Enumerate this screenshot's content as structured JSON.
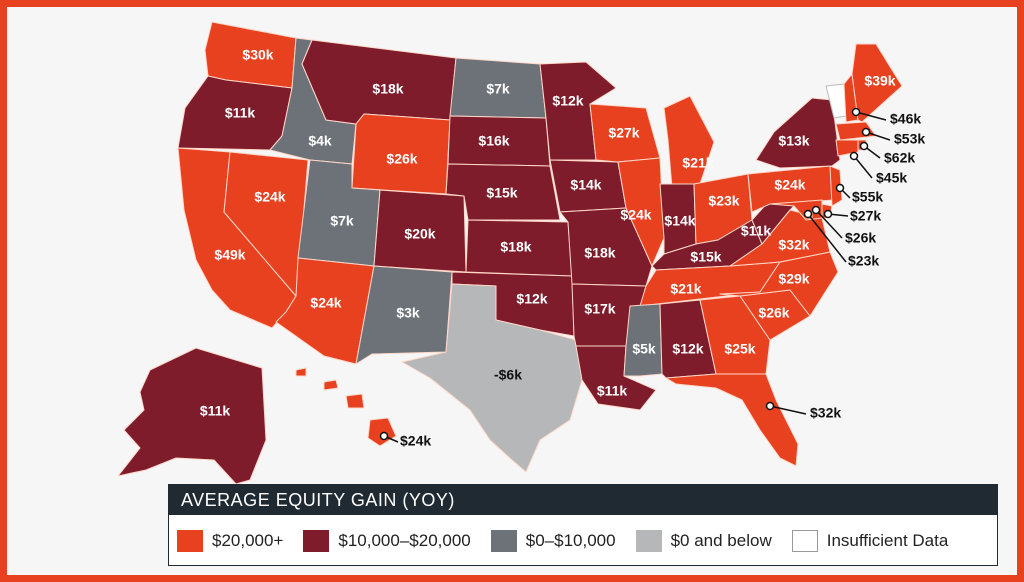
{
  "legend": {
    "title": "AVERAGE EQUITY GAIN (YOY)",
    "items": [
      {
        "label": "$20,000+",
        "color": "#e8411f"
      },
      {
        "label": "$10,000–$20,000",
        "color": "#7e1c2c"
      },
      {
        "label": "$0–$10,000",
        "color": "#6d7279"
      },
      {
        "label": "$0 and below",
        "color": "#b6b7b9"
      },
      {
        "label": "Insufficient Data",
        "color": "#ffffff"
      }
    ]
  },
  "colors": {
    "red": "#e8411f",
    "maroon": "#7e1c2c",
    "gray": "#6d7279",
    "lightgray": "#b6b7b9",
    "white": "#ffffff",
    "border": "#ffd7c9"
  },
  "states": [
    {
      "id": "wa",
      "label": "$30k",
      "fill": "red"
    },
    {
      "id": "or",
      "label": "$11k",
      "fill": "maroon"
    },
    {
      "id": "ca",
      "label": "$49k",
      "fill": "red"
    },
    {
      "id": "nv",
      "label": "$24k",
      "fill": "red"
    },
    {
      "id": "id",
      "label": "$4k",
      "fill": "gray"
    },
    {
      "id": "mt",
      "label": "$18k",
      "fill": "maroon"
    },
    {
      "id": "wy",
      "label": "$26k",
      "fill": "red"
    },
    {
      "id": "ut",
      "label": "$7k",
      "fill": "gray"
    },
    {
      "id": "az",
      "label": "$24k",
      "fill": "red"
    },
    {
      "id": "co",
      "label": "$20k",
      "fill": "maroon"
    },
    {
      "id": "nm",
      "label": "$3k",
      "fill": "gray"
    },
    {
      "id": "nd",
      "label": "$7k",
      "fill": "gray"
    },
    {
      "id": "sd",
      "label": "$16k",
      "fill": "maroon"
    },
    {
      "id": "ne",
      "label": "$15k",
      "fill": "maroon"
    },
    {
      "id": "ks",
      "label": "$18k",
      "fill": "maroon"
    },
    {
      "id": "ok",
      "label": "$12k",
      "fill": "maroon"
    },
    {
      "id": "tx",
      "label": "-$6k",
      "fill": "lightgray"
    },
    {
      "id": "mn",
      "label": "$12k",
      "fill": "maroon"
    },
    {
      "id": "ia",
      "label": "$14k",
      "fill": "maroon"
    },
    {
      "id": "mo",
      "label": "$18k",
      "fill": "maroon"
    },
    {
      "id": "ar",
      "label": "$17k",
      "fill": "maroon"
    },
    {
      "id": "la",
      "label": "$11k",
      "fill": "maroon"
    },
    {
      "id": "wi",
      "label": "$27k",
      "fill": "red"
    },
    {
      "id": "il",
      "label": "$24k",
      "fill": "red"
    },
    {
      "id": "mi",
      "label": "$21k",
      "fill": "red"
    },
    {
      "id": "in",
      "label": "$14k",
      "fill": "maroon"
    },
    {
      "id": "oh",
      "label": "$23k",
      "fill": "red"
    },
    {
      "id": "ky",
      "label": "$15k",
      "fill": "maroon"
    },
    {
      "id": "tn",
      "label": "$21k",
      "fill": "red"
    },
    {
      "id": "ms",
      "label": "$5k",
      "fill": "gray"
    },
    {
      "id": "al",
      "label": "$12k",
      "fill": "maroon"
    },
    {
      "id": "ga",
      "label": "$25k",
      "fill": "red"
    },
    {
      "id": "fl",
      "label": "$32k",
      "fill": "red"
    },
    {
      "id": "sc",
      "label": "$26k",
      "fill": "red"
    },
    {
      "id": "nc",
      "label": "$29k",
      "fill": "red"
    },
    {
      "id": "va",
      "label": "$32k",
      "fill": "red"
    },
    {
      "id": "wv",
      "label": "$11k",
      "fill": "maroon"
    },
    {
      "id": "pa",
      "label": "$24k",
      "fill": "red"
    },
    {
      "id": "ny",
      "label": "$13k",
      "fill": "maroon"
    },
    {
      "id": "vt",
      "label": "",
      "fill": "white"
    },
    {
      "id": "nh",
      "label": "$46k",
      "fill": "red"
    },
    {
      "id": "me",
      "label": "$39k",
      "fill": "red"
    },
    {
      "id": "ma",
      "label": "$53k",
      "fill": "red"
    },
    {
      "id": "ri",
      "label": "$62k",
      "fill": "red"
    },
    {
      "id": "ct",
      "label": "$45k",
      "fill": "red"
    },
    {
      "id": "nj",
      "label": "$55k",
      "fill": "red"
    },
    {
      "id": "de",
      "label": "$27k",
      "fill": "red"
    },
    {
      "id": "md",
      "label": "$26k",
      "fill": "red"
    },
    {
      "id": "dc",
      "label": "$23k",
      "fill": "red"
    },
    {
      "id": "ak",
      "label": "$11k",
      "fill": "maroon"
    },
    {
      "id": "hi",
      "label": "$24k",
      "fill": "red"
    }
  ]
}
